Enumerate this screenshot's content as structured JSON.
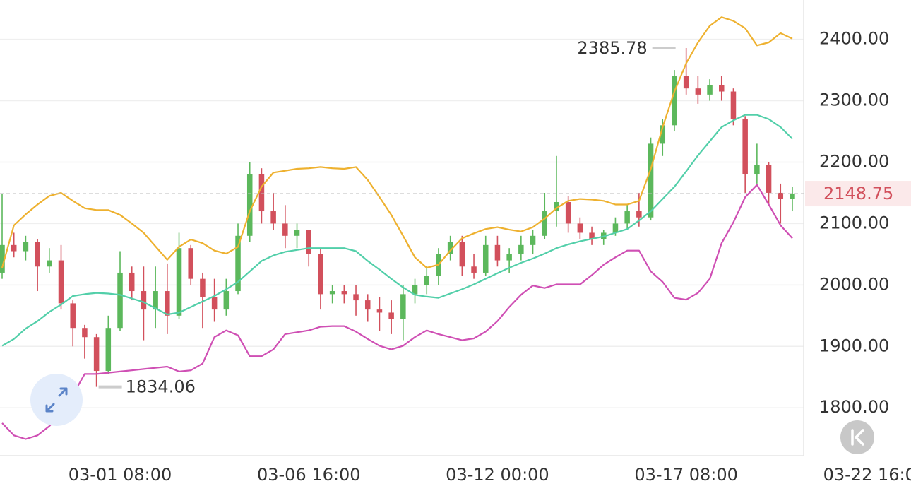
{
  "chart_data": {
    "type": "candlestick",
    "up_color": "#5cb85c",
    "down_color": "#d2505c",
    "xlim": [
      -0.18,
      67.96
    ],
    "xticks": [
      {
        "value": 10,
        "label": "03-01 08:00"
      },
      {
        "value": 26,
        "label": "03-06 16:00"
      },
      {
        "value": 42,
        "label": "03-12 00:00"
      },
      {
        "value": 58,
        "label": "03-17 08:00"
      },
      {
        "value": 74,
        "label": "03-22 16:00"
      }
    ],
    "ylim": [
      1722,
      2464
    ],
    "yticks": [
      {
        "value": 1800,
        "label": "1800.00"
      },
      {
        "value": 1900,
        "label": "1900.00"
      },
      {
        "value": 2000,
        "label": "2000.00"
      },
      {
        "value": 2100,
        "label": "2100.00"
      },
      {
        "value": 2200,
        "label": "2200.00"
      },
      {
        "value": 2300,
        "label": "2300.00"
      },
      {
        "value": 2400,
        "label": "2400.00"
      }
    ],
    "grid": true,
    "open": [
      2020,
      2065,
      2055,
      2070,
      2030,
      2040,
      1970,
      1930,
      1915,
      1860,
      1930,
      2020,
      1990,
      1960,
      1990,
      1950,
      2060,
      2010,
      1980,
      1960,
      1990,
      2080,
      2180,
      2120,
      2100,
      2080,
      2090,
      2050,
      1985,
      1990,
      1985,
      1975,
      1960,
      1955,
      1945,
      1985,
      2000,
      2015,
      2050,
      2070,
      2030,
      2020,
      2065,
      2040,
      2050,
      2065,
      2080,
      2120,
      2135,
      2100,
      2085,
      2075,
      2085,
      2100,
      2120,
      2110,
      2230,
      2260,
      2340,
      2320,
      2310,
      2325,
      2315,
      2270,
      2180,
      2195,
      2150,
      2140
    ],
    "high": [
      2148,
      2085,
      2080,
      2075,
      2060,
      2065,
      1975,
      1935,
      1920,
      1950,
      2055,
      2030,
      2030,
      2030,
      2035,
      2085,
      2065,
      2020,
      2010,
      2010,
      2100,
      2200,
      2190,
      2150,
      2130,
      2100,
      2090,
      2060,
      2000,
      2000,
      2000,
      1985,
      1980,
      1975,
      2000,
      2010,
      2030,
      2060,
      2080,
      2080,
      2050,
      2080,
      2080,
      2060,
      2080,
      2090,
      2150,
      2210,
      2145,
      2110,
      2095,
      2090,
      2110,
      2130,
      2150,
      2240,
      2270,
      2350,
      2385.78,
      2340,
      2335,
      2340,
      2320,
      2275,
      2230,
      2200,
      2165,
      2160
    ],
    "low": [
      2010,
      2045,
      2040,
      1990,
      2020,
      1960,
      1900,
      1880,
      1834.06,
      1855,
      1925,
      1975,
      1910,
      1930,
      1920,
      1945,
      2000,
      1930,
      1940,
      1950,
      1985,
      2070,
      2100,
      2090,
      2060,
      2060,
      2030,
      1960,
      1970,
      1970,
      1950,
      1940,
      1925,
      1920,
      1910,
      1970,
      1985,
      2000,
      2040,
      2015,
      2010,
      2015,
      2030,
      2020,
      2040,
      2050,
      2075,
      2095,
      2085,
      2075,
      2065,
      2065,
      2080,
      2090,
      2095,
      2105,
      2210,
      2250,
      2310,
      2295,
      2300,
      2300,
      2260,
      2150,
      2165,
      2130,
      2100,
      2120
    ],
    "close": [
      2065,
      2055,
      2070,
      2030,
      2040,
      1970,
      1930,
      1915,
      1860,
      1930,
      2020,
      1990,
      1960,
      1990,
      1950,
      2060,
      2010,
      1980,
      1960,
      1990,
      2080,
      2180,
      2120,
      2100,
      2080,
      2090,
      2050,
      1985,
      1990,
      1985,
      1975,
      1960,
      1955,
      1945,
      1985,
      2000,
      2015,
      2050,
      2070,
      2030,
      2020,
      2065,
      2040,
      2050,
      2065,
      2080,
      2120,
      2135,
      2100,
      2085,
      2075,
      2085,
      2100,
      2120,
      2110,
      2230,
      2260,
      2340,
      2320,
      2310,
      2325,
      2315,
      2270,
      2180,
      2195,
      2150,
      2140,
      2148.75
    ],
    "bands": [
      {
        "color": "#eeb12f",
        "values": [
          2028,
          2097,
          2115,
          2131,
          2145,
          2150,
          2137,
          2125,
          2122,
          2122,
          2114,
          2100,
          2085,
          2063,
          2041,
          2062,
          2074,
          2068,
          2056,
          2051,
          2062,
          2120,
          2160,
          2183,
          2186,
          2189,
          2190,
          2192,
          2190,
          2189,
          2192,
          2171,
          2143,
          2114,
          2080,
          2045,
          2028,
          2033,
          2056,
          2076,
          2084,
          2091,
          2094,
          2090,
          2087,
          2094,
          2108,
          2125,
          2137,
          2140,
          2139,
          2137,
          2131,
          2131,
          2137,
          2189,
          2257,
          2315,
          2361,
          2395,
          2422,
          2436,
          2430,
          2418,
          2390,
          2395,
          2410,
          2401
        ]
      },
      {
        "color": "#52cfa9",
        "values": [
          1901,
          1912,
          1929,
          1941,
          1956,
          1968,
          1982,
          1985,
          1987,
          1986,
          1984,
          1978,
          1972,
          1962,
          1952,
          1955,
          1964,
          1973,
          1982,
          1993,
          2005,
          2022,
          2039,
          2048,
          2054,
          2057,
          2060,
          2060,
          2060,
          2060,
          2055,
          2039,
          2025,
          2010,
          1996,
          1984,
          1981,
          1979,
          1986,
          1993,
          2001,
          2010,
          2019,
          2028,
          2036,
          2043,
          2051,
          2060,
          2066,
          2071,
          2075,
          2079,
          2085,
          2091,
          2105,
          2120,
          2140,
          2160,
          2185,
          2211,
          2234,
          2257,
          2268,
          2277,
          2277,
          2270,
          2257,
          2238
        ]
      },
      {
        "color": "#cf4fb4",
        "values": [
          1775,
          1755,
          1749,
          1755,
          1770,
          1790,
          1821,
          1855,
          1855,
          1857,
          1859,
          1861,
          1863,
          1865,
          1867,
          1859,
          1861,
          1872,
          1915,
          1926,
          1918,
          1884,
          1884,
          1895,
          1920,
          1923,
          1926,
          1932,
          1933,
          1933,
          1924,
          1912,
          1901,
          1895,
          1901,
          1915,
          1926,
          1920,
          1915,
          1910,
          1913,
          1924,
          1941,
          1964,
          1984,
          1999,
          1995,
          2001,
          2001,
          2001,
          2016,
          2033,
          2045,
          2056,
          2056,
          2022,
          2005,
          1979,
          1976,
          1987,
          2010,
          2068,
          2102,
          2143,
          2163,
          2131,
          2097,
          2076
        ]
      }
    ]
  }
}
